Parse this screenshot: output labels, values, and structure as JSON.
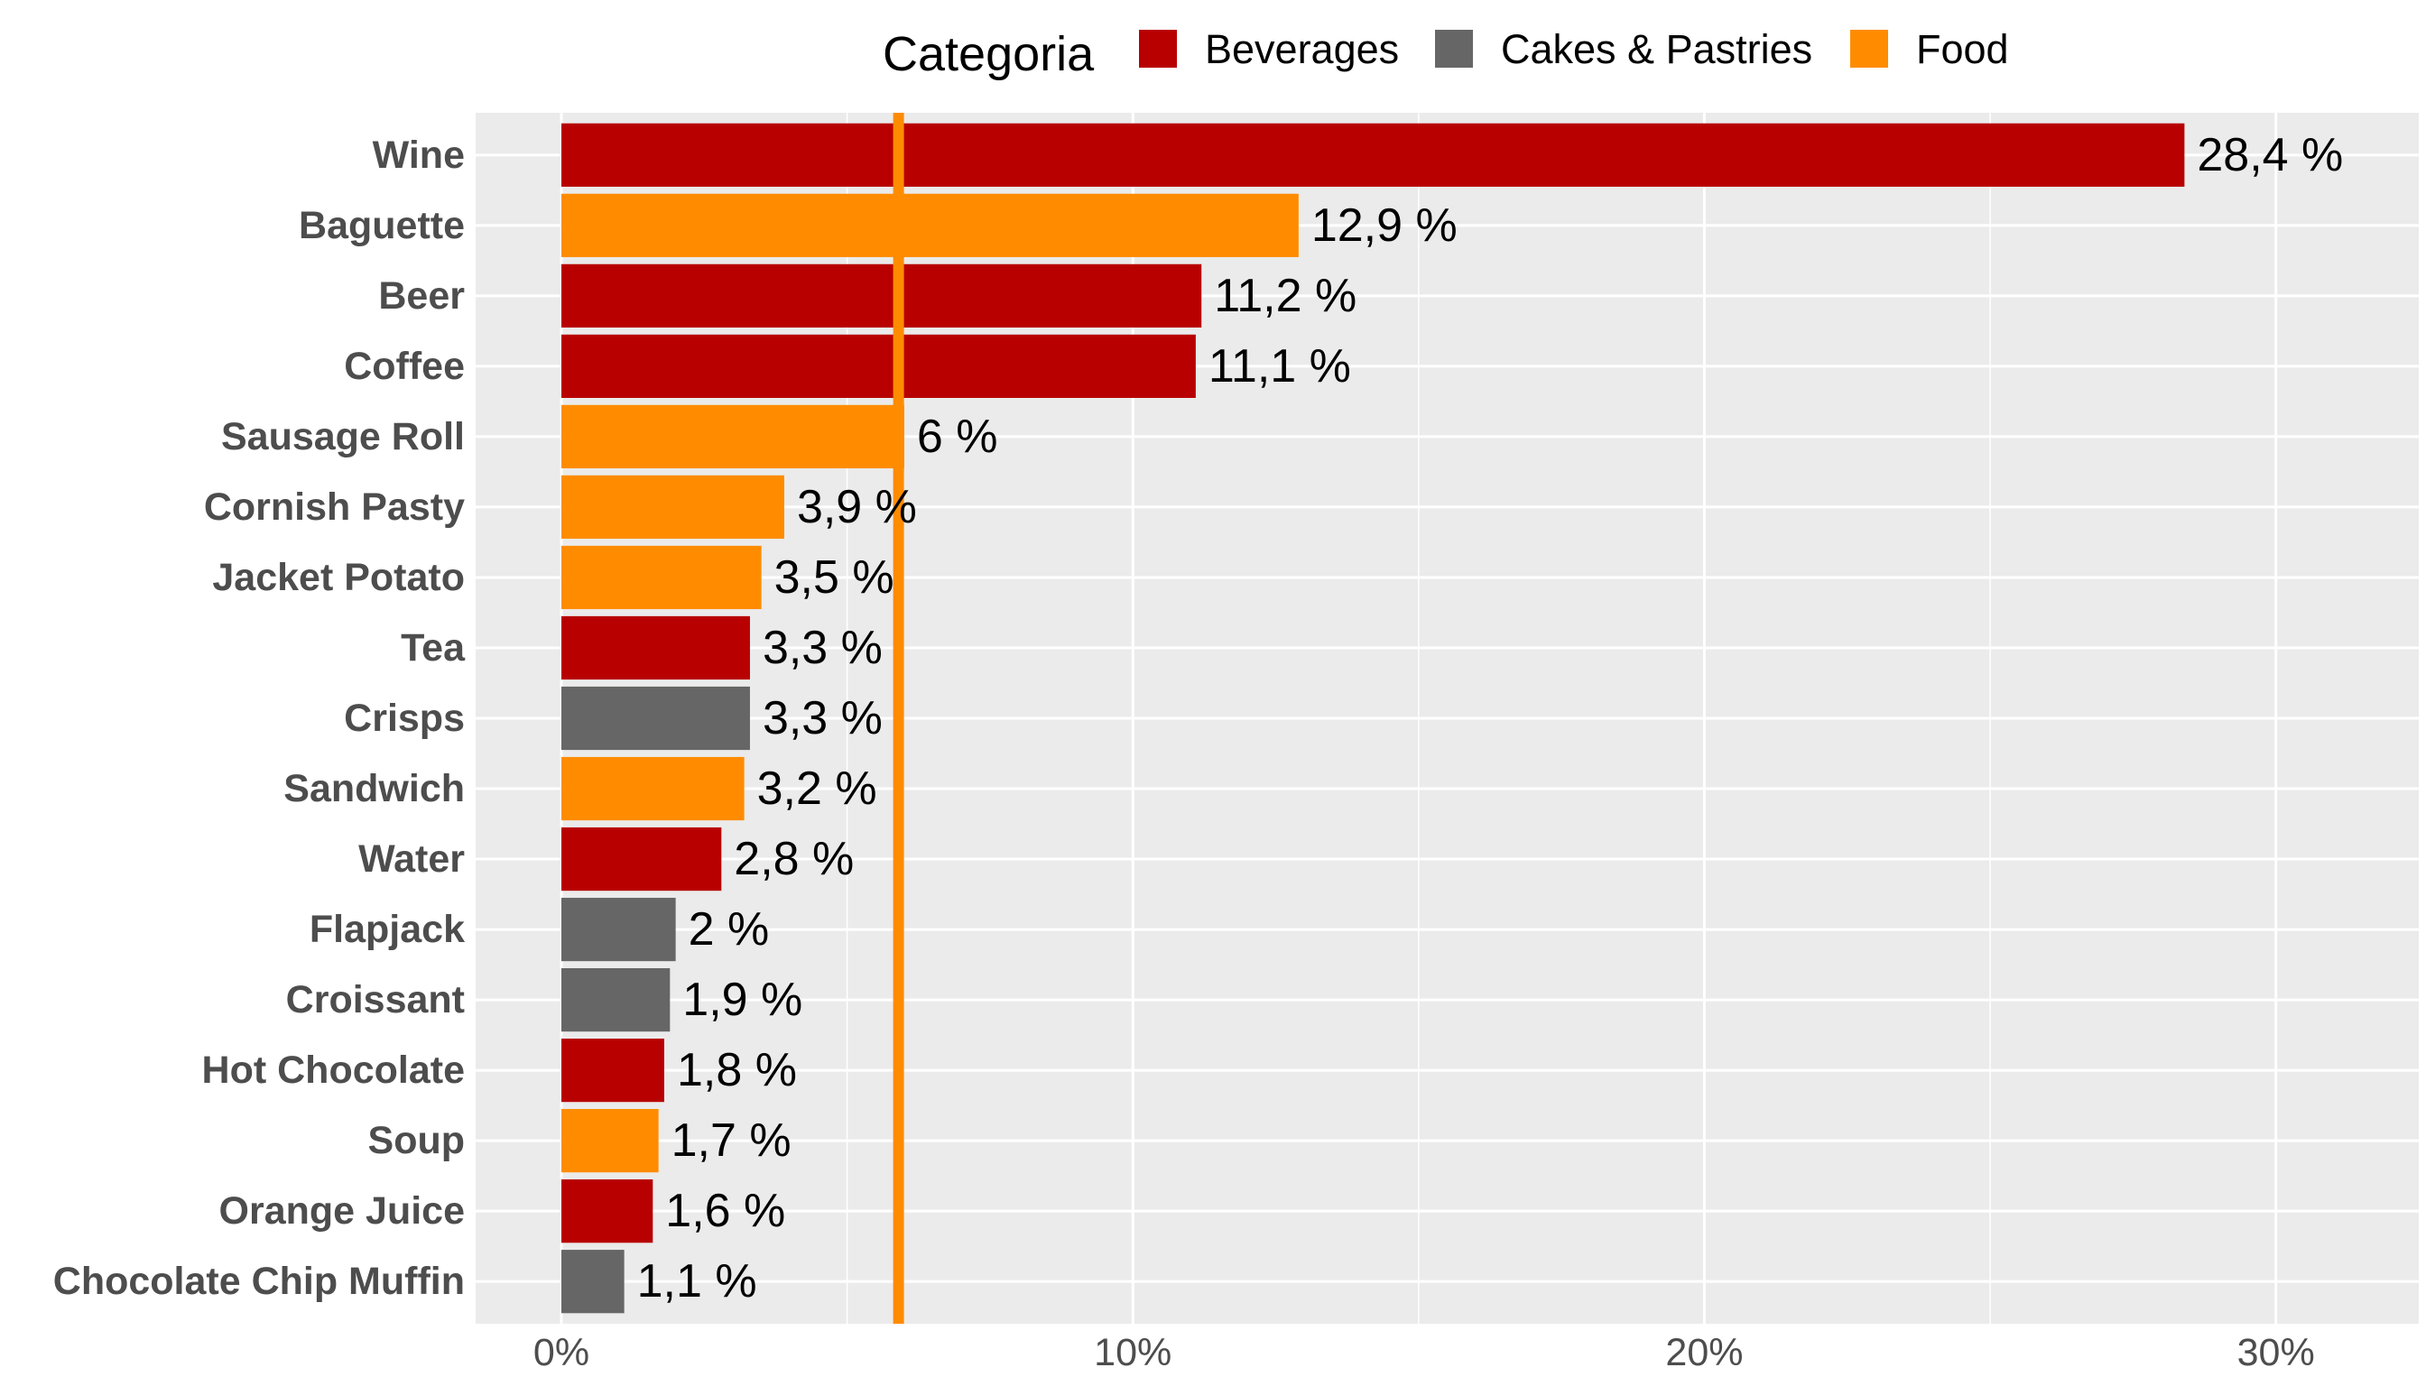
{
  "chart_data": {
    "type": "bar",
    "orientation": "horizontal",
    "legend": {
      "title": "Categoria",
      "placement": "top",
      "entries": [
        {
          "name": "Beverages",
          "color": "#b80000"
        },
        {
          "name": "Cakes & Pastries",
          "color": "#666666"
        },
        {
          "name": "Food",
          "color": "#ff8c00"
        }
      ]
    },
    "bars": [
      {
        "category": "Wine",
        "value": 28.4,
        "label": "28,4 %",
        "group": "Beverages"
      },
      {
        "category": "Baguette",
        "value": 12.9,
        "label": "12,9 %",
        "group": "Food"
      },
      {
        "category": "Beer",
        "value": 11.2,
        "label": "11,2 %",
        "group": "Beverages"
      },
      {
        "category": "Coffee",
        "value": 11.1,
        "label": "11,1 %",
        "group": "Beverages"
      },
      {
        "category": "Sausage Roll",
        "value": 6.0,
        "label": "6 %",
        "group": "Food"
      },
      {
        "category": "Cornish Pasty",
        "value": 3.9,
        "label": "3,9 %",
        "group": "Food"
      },
      {
        "category": "Jacket Potato",
        "value": 3.5,
        "label": "3,5 %",
        "group": "Food"
      },
      {
        "category": "Tea",
        "value": 3.3,
        "label": "3,3 %",
        "group": "Beverages"
      },
      {
        "category": "Crisps",
        "value": 3.3,
        "label": "3,3 %",
        "group": "Cakes & Pastries"
      },
      {
        "category": "Sandwich",
        "value": 3.2,
        "label": "3,2 %",
        "group": "Food"
      },
      {
        "category": "Water",
        "value": 2.8,
        "label": "2,8 %",
        "group": "Beverages"
      },
      {
        "category": "Flapjack",
        "value": 2.0,
        "label": "2 %",
        "group": "Cakes & Pastries"
      },
      {
        "category": "Croissant",
        "value": 1.9,
        "label": "1,9 %",
        "group": "Cakes & Pastries"
      },
      {
        "category": "Hot Chocolate",
        "value": 1.8,
        "label": "1,8 %",
        "group": "Beverages"
      },
      {
        "category": "Soup",
        "value": 1.7,
        "label": "1,7 %",
        "group": "Food"
      },
      {
        "category": "Orange Juice",
        "value": 1.6,
        "label": "1,6 %",
        "group": "Beverages"
      },
      {
        "category": "Chocolate Chip Muffin",
        "value": 1.1,
        "label": "1,1 %",
        "group": "Cakes & Pastries"
      }
    ],
    "xaxis": {
      "ticks": [
        0,
        10,
        20,
        30
      ],
      "tick_labels": [
        "0%",
        "10%",
        "20%",
        "30%"
      ],
      "range": [
        -1.5,
        32.5
      ]
    },
    "reference_line": {
      "value": 5.9,
      "color": "#ff8c00"
    },
    "grid": true,
    "panel_background": "#ebebeb"
  }
}
